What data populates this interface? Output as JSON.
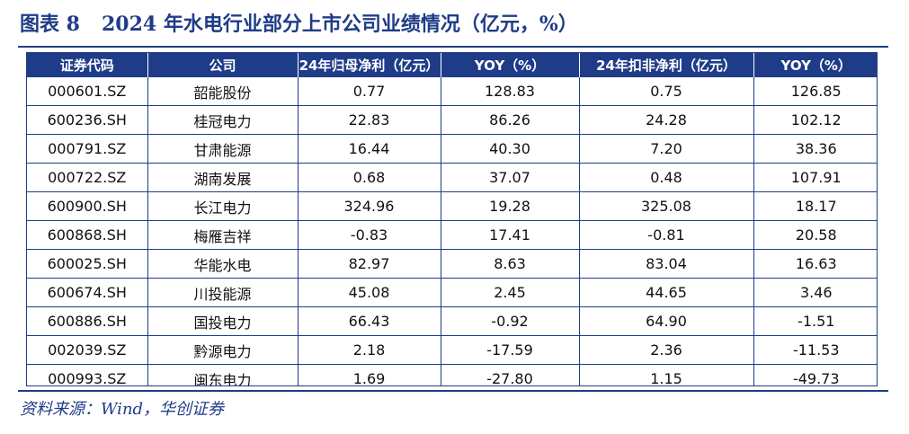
{
  "title": {
    "figure_label": "图表 8",
    "text": "2024 年水电行业部分上市公司业绩情况（亿元，%）"
  },
  "table": {
    "headers": [
      "证券代码",
      "公司",
      "24年归母净利（亿元）",
      "YOY（%）",
      "24年扣非净利（亿元）",
      "YOY（%）"
    ],
    "rows": [
      [
        "000601.SZ",
        "韶能股份",
        "0.77",
        "128.83",
        "0.75",
        "126.85"
      ],
      [
        "600236.SH",
        "桂冠电力",
        "22.83",
        "86.26",
        "24.28",
        "102.12"
      ],
      [
        "000791.SZ",
        "甘肃能源",
        "16.44",
        "40.30",
        "7.20",
        "38.36"
      ],
      [
        "000722.SZ",
        "湖南发展",
        "0.68",
        "37.07",
        "0.48",
        "107.91"
      ],
      [
        "600900.SH",
        "长江电力",
        "324.96",
        "19.28",
        "325.08",
        "18.17"
      ],
      [
        "600868.SH",
        "梅雁吉祥",
        "-0.83",
        "17.41",
        "-0.81",
        "20.58"
      ],
      [
        "600025.SH",
        "华能水电",
        "82.97",
        "8.63",
        "83.04",
        "16.63"
      ],
      [
        "600674.SH",
        "川投能源",
        "45.08",
        "2.45",
        "44.65",
        "3.46"
      ],
      [
        "600886.SH",
        "国投电力",
        "66.43",
        "-0.92",
        "64.90",
        "-1.51"
      ],
      [
        "002039.SZ",
        "黔源电力",
        "2.18",
        "-17.59",
        "2.36",
        "-11.53"
      ],
      [
        "000993.SZ",
        "闽东电力",
        "1.69",
        "-27.80",
        "1.15",
        "-49.73"
      ]
    ]
  },
  "source": "资料来源：Wind，华创证券",
  "colors": {
    "accent": "#1f3c88",
    "header_text": "#ffffff"
  }
}
